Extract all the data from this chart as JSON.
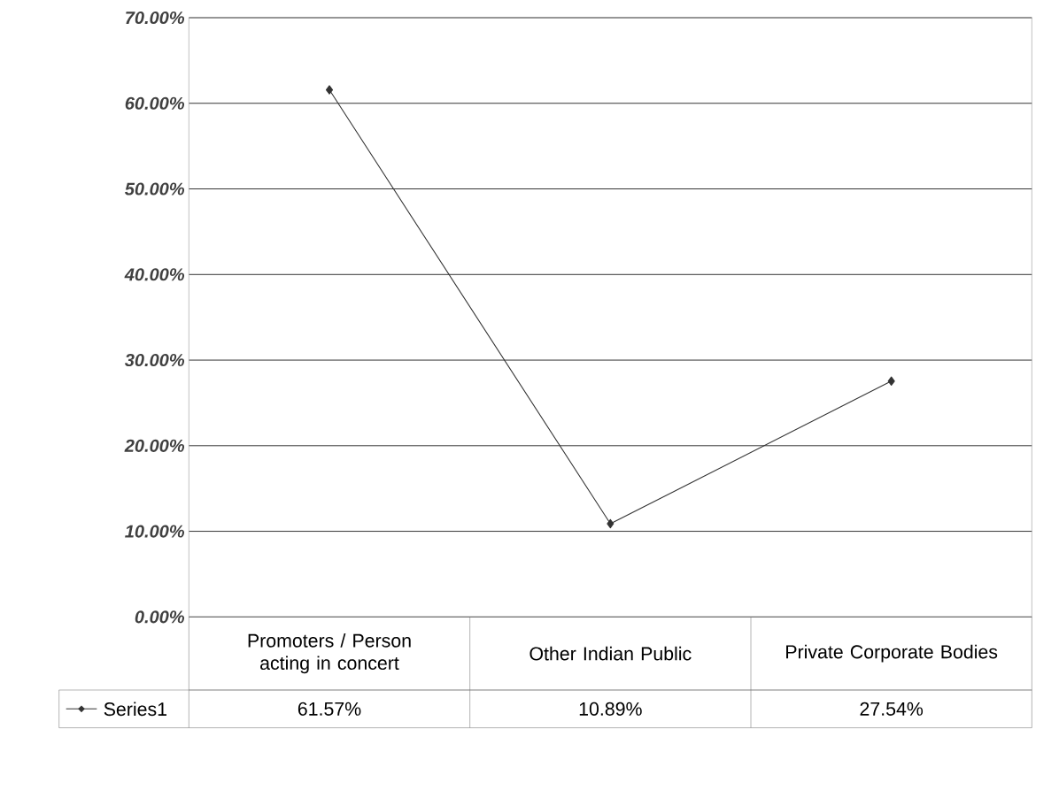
{
  "chart_data": {
    "type": "line",
    "categories": [
      "Promoters / Person acting in concert",
      "Other Indian Public",
      "Private Corporate Bodies"
    ],
    "series": [
      {
        "name": "Series1",
        "color": "#333333",
        "values": [
          61.57,
          10.89,
          27.54
        ],
        "value_labels": [
          "61.57%",
          "10.89%",
          "27.54%"
        ]
      }
    ],
    "ylim": [
      0,
      70
    ],
    "yticks": [
      {
        "value": 0,
        "label": "0.00%"
      },
      {
        "value": 10,
        "label": "10.00%"
      },
      {
        "value": 20,
        "label": "20.00%"
      },
      {
        "value": 30,
        "label": "30.00%"
      },
      {
        "value": 40,
        "label": "40.00%"
      },
      {
        "value": 50,
        "label": "50.00%"
      },
      {
        "value": 60,
        "label": "60.00%"
      },
      {
        "value": 70,
        "label": "70.00%"
      }
    ],
    "grid": "y",
    "legend": "bottom",
    "marker": "diamond",
    "line_style": "solid"
  }
}
